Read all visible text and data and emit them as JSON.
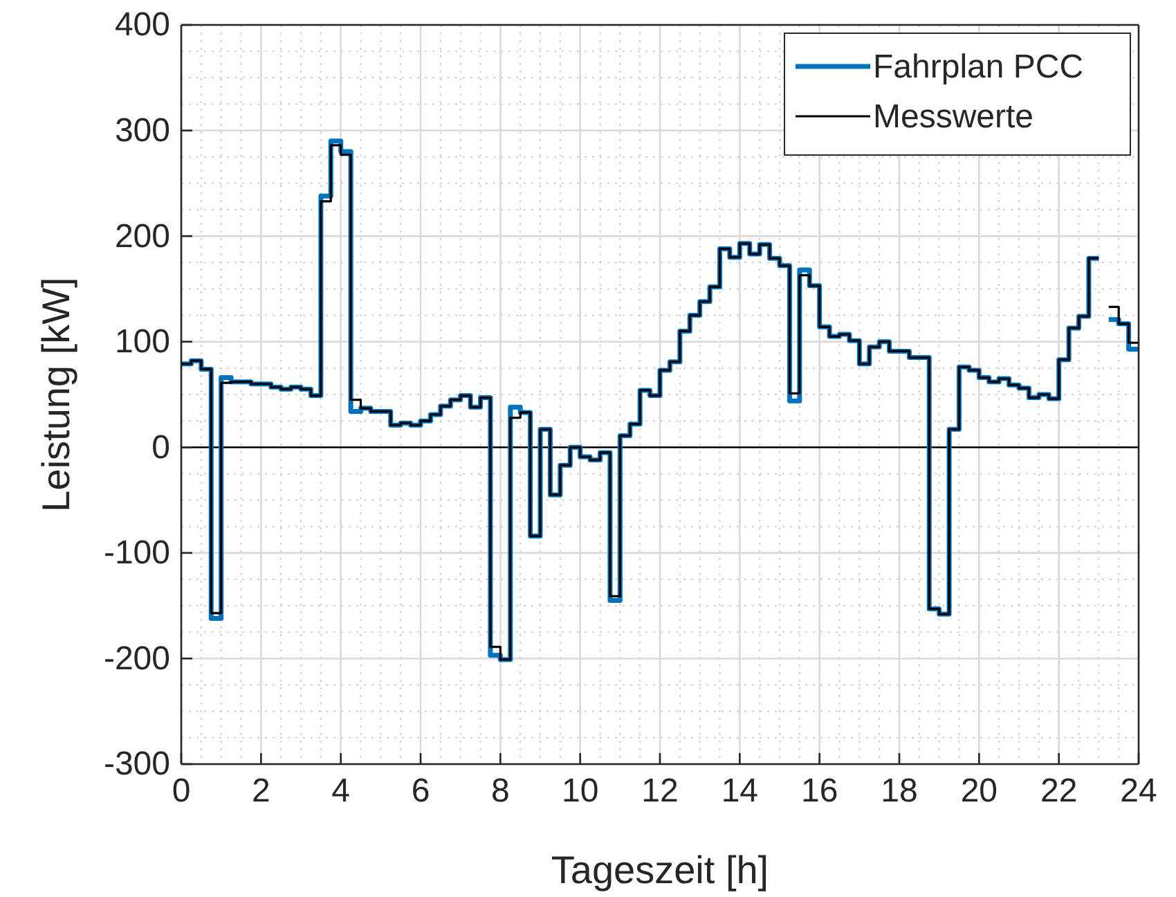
{
  "chart_data": {
    "type": "step",
    "xlabel": "Tageszeit [h]",
    "ylabel": "Leistung [kW]",
    "x": [
      0,
      0.25,
      0.5,
      0.75,
      1,
      1.25,
      1.5,
      1.75,
      2,
      2.25,
      2.5,
      2.75,
      3,
      3.25,
      3.5,
      3.75,
      4,
      4.25,
      4.5,
      4.75,
      5,
      5.25,
      5.5,
      5.75,
      6,
      6.25,
      6.5,
      6.75,
      7,
      7.25,
      7.5,
      7.75,
      8,
      8.25,
      8.5,
      8.75,
      9,
      9.25,
      9.5,
      9.75,
      10,
      10.25,
      10.5,
      10.75,
      11,
      11.25,
      11.5,
      11.75,
      12,
      12.25,
      12.5,
      12.75,
      13,
      13.25,
      13.5,
      13.75,
      14,
      14.25,
      14.5,
      14.75,
      15,
      15.25,
      15.5,
      15.75,
      16,
      16.25,
      16.5,
      16.75,
      17,
      17.25,
      17.5,
      17.75,
      18,
      18.25,
      18.5,
      18.75,
      19,
      19.25,
      19.5,
      19.75,
      20,
      20.25,
      20.5,
      20.75,
      21,
      21.25,
      21.5,
      21.75,
      22,
      22.25,
      22.5,
      22.75,
      23,
      23.25,
      23.5,
      23.75,
      24
    ],
    "series": [
      {
        "name": "Fahrplan PCC",
        "color": "#0072bd",
        "values": [
          79,
          82,
          74,
          -162,
          66,
          62,
          62,
          60,
          60,
          57,
          55,
          57,
          55,
          49,
          238,
          290,
          280,
          34,
          37,
          34,
          34,
          21,
          23,
          21,
          25,
          31,
          39,
          45,
          49,
          38,
          47,
          -197,
          -201,
          38,
          33,
          -84,
          17,
          -45,
          -17,
          0,
          -9,
          -12,
          -5,
          -145,
          11,
          22,
          54,
          49,
          73,
          81,
          110,
          125,
          138,
          152,
          188,
          180,
          193,
          183,
          192,
          179,
          172,
          44,
          168,
          153,
          114,
          105,
          107,
          101,
          79,
          95,
          100,
          91,
          91,
          85,
          85,
          -153,
          -158,
          17,
          76,
          73,
          66,
          62,
          65,
          59,
          56,
          47,
          50,
          46,
          83,
          113,
          124,
          179,
          null,
          121,
          117,
          93,
          93
        ]
      },
      {
        "name": "Messwerte",
        "color": "#000000",
        "values": [
          79,
          82,
          74,
          -157,
          61,
          62,
          62,
          60,
          60,
          57,
          55,
          57,
          55,
          49,
          233,
          286,
          277,
          45,
          37,
          34,
          34,
          21,
          23,
          21,
          25,
          31,
          39,
          45,
          49,
          38,
          47,
          -189,
          -201,
          28,
          33,
          -84,
          17,
          -45,
          -17,
          0,
          -9,
          -12,
          -5,
          -141,
          11,
          22,
          54,
          49,
          73,
          81,
          110,
          125,
          138,
          152,
          188,
          180,
          193,
          183,
          192,
          179,
          172,
          51,
          163,
          153,
          114,
          105,
          107,
          101,
          79,
          95,
          100,
          91,
          91,
          85,
          85,
          -153,
          -158,
          17,
          76,
          73,
          66,
          62,
          65,
          59,
          56,
          47,
          50,
          46,
          83,
          113,
          124,
          179,
          null,
          133,
          117,
          99,
          99
        ]
      }
    ],
    "xlim": [
      0,
      24
    ],
    "xticks": [
      0,
      2,
      4,
      6,
      8,
      10,
      12,
      14,
      16,
      18,
      20,
      22,
      24
    ],
    "ylim": [
      -300,
      400
    ],
    "yticks": [
      -300,
      -200,
      -100,
      0,
      100,
      200,
      300,
      400
    ],
    "ref_lines": [
      {
        "axis": "y",
        "value": 0,
        "color": "#000000"
      }
    ],
    "grid": true,
    "legend": "top right"
  }
}
